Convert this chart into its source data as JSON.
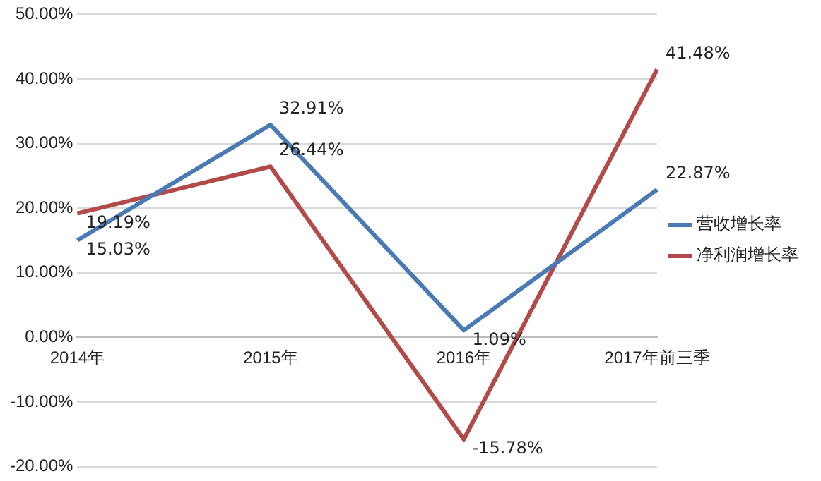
{
  "chart_data": {
    "type": "line",
    "categories": [
      "2014年",
      "2015年",
      "2016年",
      "2017年前三季"
    ],
    "series": [
      {
        "name": "营收增长率",
        "color": "#4a7ab5",
        "values": [
          15.03,
          32.91,
          1.09,
          22.87
        ],
        "value_labels": [
          "15.03%",
          "32.91%",
          "1.09%",
          "22.87%"
        ]
      },
      {
        "name": "净利润增长率",
        "color": "#b24a48",
        "values": [
          19.19,
          26.44,
          -15.78,
          41.48
        ],
        "value_labels": [
          "19.19%",
          "26.44%",
          "-15.78%",
          "41.48%"
        ]
      }
    ],
    "ylim": [
      -20,
      50
    ],
    "yticks": [
      {
        "value": -20,
        "label": "-20.00%"
      },
      {
        "value": -10,
        "label": "-10.00%"
      },
      {
        "value": 0,
        "label": "0.00%"
      },
      {
        "value": 10,
        "label": "10.00%"
      },
      {
        "value": 20,
        "label": "20.00%"
      },
      {
        "value": 30,
        "label": "30.00%"
      },
      {
        "value": 40,
        "label": "40.00%"
      },
      {
        "value": 50,
        "label": "50.00%"
      }
    ],
    "grid": "y",
    "legend": "right",
    "marker": "none",
    "line_style": "solid"
  }
}
